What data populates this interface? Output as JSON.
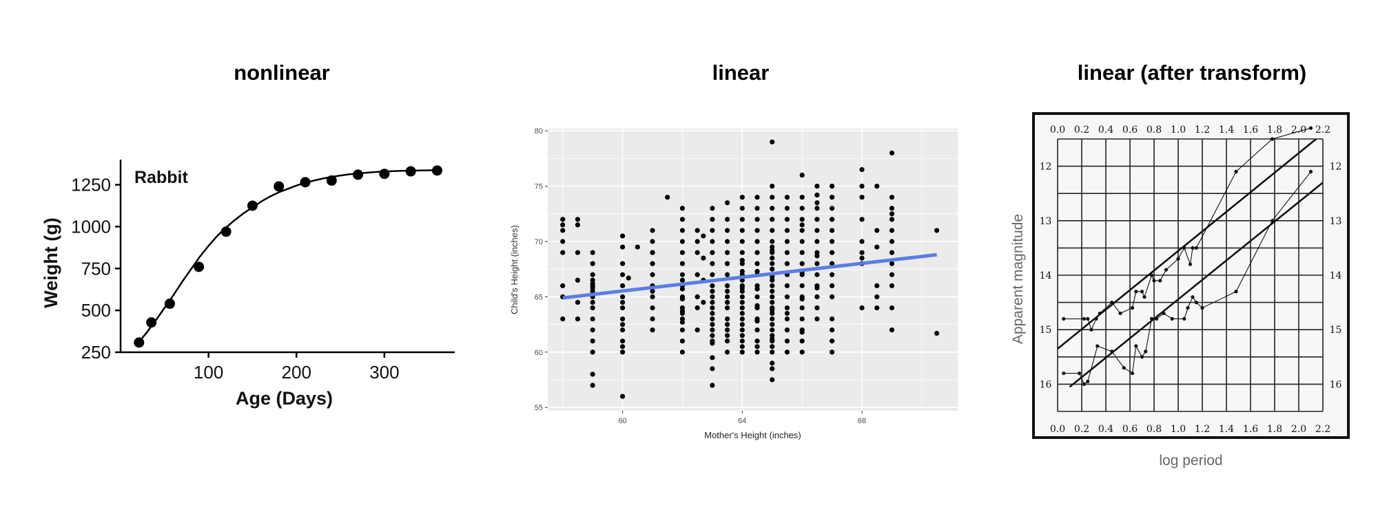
{
  "panels": [
    {
      "title": "nonlinear"
    },
    {
      "title": "linear"
    },
    {
      "title": "linear (after transform)"
    }
  ],
  "chart_data": [
    {
      "type": "scatter",
      "title": "nonlinear",
      "annotation": "Rabbit",
      "xlabel": "Age (Days)",
      "ylabel": "Weight (g)",
      "xlim": [
        0,
        380
      ],
      "ylim": [
        250,
        1400
      ],
      "xticks": [
        100,
        200,
        300
      ],
      "yticks": [
        250,
        500,
        750,
        1000,
        1250
      ],
      "grid": false,
      "points": {
        "x": [
          21,
          35,
          56,
          89,
          120,
          150,
          180,
          210,
          240,
          270,
          300,
          330,
          360
        ],
        "y": [
          308,
          428,
          540,
          760,
          970,
          1125,
          1240,
          1265,
          1275,
          1310,
          1315,
          1330,
          1335
        ]
      },
      "fit_curve": {
        "x": [
          20,
          30,
          40,
          50,
          60,
          70,
          80,
          90,
          100,
          110,
          120,
          130,
          140,
          150,
          160,
          170,
          180,
          190,
          200,
          210,
          220,
          230,
          240,
          250,
          260,
          270,
          280,
          290,
          300,
          310,
          320,
          330,
          340,
          350,
          360
        ],
        "y": [
          305,
          370,
          440,
          515,
          590,
          670,
          745,
          820,
          885,
          945,
          995,
          1040,
          1080,
          1115,
          1150,
          1180,
          1205,
          1225,
          1245,
          1262,
          1275,
          1287,
          1297,
          1305,
          1312,
          1317,
          1322,
          1326,
          1329,
          1331,
          1333,
          1334,
          1335,
          1336,
          1337
        ]
      },
      "colors": {
        "points": "#000000",
        "curve": "#000000"
      }
    },
    {
      "type": "scatter",
      "title": "linear",
      "xlabel": "Mother's Height (inches)",
      "ylabel": "Child's Height (inches)",
      "xlim": [
        57.5,
        71.2
      ],
      "ylim": [
        54.7,
        80.2
      ],
      "xticks": [
        60,
        64,
        68
      ],
      "yticks": [
        55,
        60,
        65,
        70,
        75,
        80
      ],
      "grid": true,
      "points": {
        "x": [
          58,
          58,
          58,
          58,
          58,
          58,
          58,
          58,
          58.5,
          58.5,
          58.5,
          58.5,
          58.5,
          58.5,
          59,
          59,
          59,
          59,
          59,
          59,
          59,
          59,
          59,
          59,
          59,
          59,
          59,
          59,
          59,
          59,
          59,
          60,
          60,
          60,
          60,
          60,
          60,
          60,
          60,
          60,
          60,
          60,
          60,
          60,
          60,
          60,
          60.2,
          60.5,
          61,
          61,
          61,
          61,
          61,
          61,
          61,
          61,
          61,
          61,
          61,
          61,
          61.5,
          62,
          62,
          62,
          62,
          62,
          62,
          62,
          62,
          62,
          62,
          62,
          62,
          62,
          62,
          62,
          62,
          62,
          62,
          62,
          62,
          62.5,
          62.5,
          62.5,
          62.5,
          62.5,
          62.5,
          62.5,
          62.7,
          62.7,
          62.7,
          62.7,
          63,
          63,
          63,
          63,
          63,
          63,
          63,
          63,
          63,
          63,
          63,
          63,
          63,
          63,
          63,
          63,
          63,
          63,
          63,
          63,
          63,
          63,
          63.5,
          63.5,
          63.5,
          63.5,
          63.5,
          63.5,
          63.5,
          63.5,
          63.5,
          63.5,
          63.5,
          63.5,
          63.5,
          63.5,
          63.5,
          63.5,
          63.5,
          63.5,
          64,
          64,
          64,
          64,
          64,
          64,
          64,
          64,
          64,
          64,
          64,
          64,
          64,
          64,
          64,
          64,
          64,
          64,
          64,
          64,
          64,
          64,
          64,
          64,
          64,
          64.5,
          64.5,
          64.5,
          64.5,
          64.5,
          64.5,
          64.5,
          64.5,
          64.5,
          64.5,
          64.5,
          64.5,
          64.5,
          64.5,
          64.5,
          64.5,
          64.5,
          64.5,
          64.5,
          64.5,
          65,
          65,
          65,
          65,
          65,
          65,
          65,
          65,
          65,
          65,
          65,
          65,
          65,
          65,
          65,
          65,
          65,
          65,
          65,
          65,
          65,
          65,
          65,
          65,
          65,
          65,
          65,
          65,
          65,
          65,
          65,
          65,
          65,
          65,
          65.5,
          65.5,
          65.5,
          65.5,
          65.5,
          65.5,
          65.5,
          65.5,
          65.5,
          65.5,
          65.5,
          65.5,
          65.5,
          65.5,
          65.5,
          65.5,
          66,
          66,
          66,
          66,
          66,
          66,
          66,
          66,
          66,
          66,
          66,
          66,
          66,
          66,
          66,
          66,
          66,
          66,
          66,
          66,
          66.5,
          66.5,
          66.5,
          66.5,
          66.5,
          66.5,
          66.5,
          66.5,
          66.5,
          66.5,
          66.5,
          66.5,
          66.5,
          66.5,
          66.5,
          66.5,
          67,
          67,
          67,
          67,
          67,
          67,
          67,
          67,
          67,
          67,
          67,
          67,
          67,
          67,
          67,
          68,
          68,
          68,
          68,
          68,
          68,
          68,
          68,
          68,
          68.5,
          68.5,
          68.5,
          68.5,
          68.5,
          68.5,
          69,
          69,
          69,
          69,
          69,
          69,
          69,
          69,
          69,
          69,
          69,
          69,
          69,
          70.5,
          70.5
        ],
        "y": [
          72,
          71.5,
          69,
          66,
          65,
          63,
          71,
          70,
          72,
          71.5,
          69,
          66.5,
          64.5,
          63,
          69,
          68,
          67,
          66.5,
          66,
          65.5,
          65,
          64,
          63,
          62,
          61,
          60,
          58,
          57,
          65.8,
          66.2,
          64.5,
          70.5,
          69.5,
          68,
          67,
          66,
          65,
          64.5,
          64,
          63,
          62.5,
          62,
          61,
          60.5,
          60,
          56,
          66.7,
          69.5,
          71,
          70,
          69,
          68,
          67,
          66,
          65.5,
          65,
          64,
          63,
          62,
          69,
          74,
          73,
          72,
          71,
          70,
          69,
          68,
          67,
          66,
          65,
          64,
          63.5,
          63,
          62,
          61,
          60,
          66.5,
          65.7,
          64.8,
          63.7,
          62.7,
          71,
          70,
          69,
          67,
          65,
          64,
          62,
          70.5,
          68.5,
          66.5,
          64.5,
          73,
          72,
          71,
          70,
          69,
          68,
          67,
          66,
          65.5,
          65,
          64.5,
          64,
          63.5,
          63,
          62.5,
          62,
          61.5,
          61,
          60.8,
          57,
          59.5,
          58.5,
          71,
          70,
          69,
          68,
          67,
          66,
          65,
          64,
          63,
          62,
          61,
          60,
          73.5,
          72,
          65.5,
          64.5,
          62.5,
          61.5,
          74,
          73,
          72,
          71,
          70,
          69,
          68,
          67,
          66.5,
          66,
          65.5,
          65,
          64.5,
          64,
          63.5,
          63,
          62.5,
          62,
          61.5,
          61,
          60.5,
          60,
          68.3,
          67.3,
          65.8,
          72,
          71,
          70,
          69,
          68,
          67,
          66,
          65,
          64,
          63,
          62,
          61,
          60,
          74,
          73,
          60.5,
          62.8,
          64.2,
          65.7,
          67.3,
          79,
          75,
          74,
          73,
          72,
          71,
          70,
          69.5,
          69,
          68.5,
          68,
          67.5,
          67,
          66.5,
          66,
          65.5,
          65,
          64.5,
          64,
          63.5,
          63,
          62.5,
          62,
          61.5,
          61,
          60.5,
          60,
          59,
          57.5,
          58.5,
          61.2,
          63.8,
          66.8,
          69.2,
          73,
          72,
          71,
          70,
          69,
          68,
          67,
          66,
          65,
          64,
          63,
          62,
          61,
          60,
          74,
          63.5,
          76,
          73,
          72,
          71,
          70,
          69,
          68,
          67,
          66,
          65,
          64,
          63,
          62,
          61,
          60,
          71.5,
          64.8,
          67.2,
          61.8,
          74,
          73.5,
          73,
          72,
          71,
          70,
          69,
          68,
          67,
          66,
          65,
          64,
          63,
          75,
          74.2,
          68.7,
          65.8,
          75,
          74,
          73,
          72,
          71,
          70,
          69,
          68,
          67,
          66,
          65,
          63,
          62,
          61,
          60,
          76.5,
          75,
          74,
          72,
          70,
          69,
          68.5,
          68,
          64,
          75,
          71,
          69.5,
          66,
          65,
          64,
          78,
          74,
          73,
          72.5,
          72,
          71,
          70,
          69,
          68,
          67,
          66,
          64,
          62,
          71,
          61.7
        ]
      },
      "fit_line": {
        "x": [
          58,
          70.5
        ],
        "y": [
          64.9,
          68.8
        ]
      },
      "colors": {
        "points": "#000000",
        "fit_line": "#5b7ee5",
        "panel_bg": "#ebebeb",
        "grid": "#ffffff",
        "axis_text": "#4d4d4d"
      }
    },
    {
      "type": "line",
      "title": "linear (after transform)",
      "xlabel": "log period",
      "ylabel": "Apparent magnitude",
      "xlim": [
        0,
        2.2
      ],
      "ylim": [
        11.5,
        16.5
      ],
      "xticks": [
        "0.0",
        "0.2",
        "0.4",
        "0.6",
        "0.8",
        "1.0",
        "1.2",
        "1.4",
        "1.6",
        "1.8",
        "2.0",
        "2.2"
      ],
      "yticks": [
        "12",
        "13",
        "14",
        "15",
        "16"
      ],
      "y_reversed": true,
      "grid": true,
      "series": [
        {
          "x": [
            0.05,
            0.22,
            0.25,
            0.28,
            0.32,
            0.35,
            0.45,
            0.52,
            0.62,
            0.65,
            0.7,
            0.72,
            0.78,
            0.8,
            0.85,
            0.9,
            1.0,
            1.05,
            1.1,
            1.12,
            1.15,
            1.48,
            1.78,
            2.1
          ],
          "y": [
            14.8,
            14.8,
            14.8,
            15.0,
            14.8,
            14.7,
            14.5,
            14.7,
            14.6,
            14.3,
            14.3,
            14.4,
            14.0,
            14.1,
            14.1,
            13.9,
            13.7,
            13.5,
            13.8,
            13.5,
            13.5,
            12.1,
            11.5,
            11.3
          ]
        },
        {
          "x": [
            0.05,
            0.18,
            0.22,
            0.25,
            0.33,
            0.45,
            0.55,
            0.62,
            0.65,
            0.7,
            0.73,
            0.78,
            0.82,
            0.88,
            0.95,
            1.05,
            1.08,
            1.12,
            1.15,
            1.2,
            1.48,
            1.78,
            2.1
          ],
          "y": [
            15.8,
            15.8,
            16.0,
            15.95,
            15.3,
            15.4,
            15.7,
            15.8,
            15.3,
            15.5,
            15.4,
            14.8,
            14.8,
            14.7,
            14.8,
            14.8,
            14.6,
            14.4,
            14.5,
            14.6,
            14.3,
            13.0,
            12.1
          ]
        }
      ],
      "fit_lines": [
        {
          "x": [
            0.0,
            2.2
          ],
          "y": [
            15.35,
            11.4
          ]
        },
        {
          "x": [
            0.1,
            2.2
          ],
          "y": [
            16.05,
            12.3
          ]
        }
      ],
      "colors": {
        "ink": "#111111",
        "grid": "#222222",
        "paper": "#f7f7f7",
        "axis_text": "#666666"
      }
    }
  ]
}
